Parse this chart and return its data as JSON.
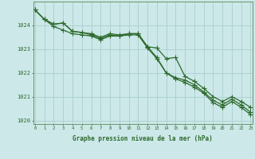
{
  "x": [
    0,
    1,
    2,
    3,
    4,
    5,
    6,
    7,
    8,
    9,
    10,
    11,
    12,
    13,
    14,
    15,
    16,
    17,
    18,
    19,
    20,
    21,
    22,
    23
  ],
  "series1": [
    1024.65,
    1024.25,
    1023.95,
    1023.8,
    1023.65,
    1023.6,
    1023.55,
    1023.4,
    1023.55,
    1023.55,
    1023.6,
    1023.6,
    1023.05,
    1022.6,
    1022.0,
    1021.75,
    1021.6,
    1021.4,
    1021.15,
    1020.75,
    1020.55,
    1020.8,
    1020.55,
    1020.25
  ],
  "series2": [
    1024.65,
    1024.25,
    1024.05,
    1024.1,
    1023.75,
    1023.7,
    1023.6,
    1023.45,
    1023.6,
    1023.55,
    1023.65,
    1023.65,
    1023.1,
    1022.65,
    1022.0,
    1021.8,
    1021.7,
    1021.5,
    1021.2,
    1020.85,
    1020.65,
    1020.9,
    1020.65,
    1020.35
  ],
  "series3": [
    1024.65,
    1024.25,
    1024.05,
    1024.1,
    1023.75,
    1023.7,
    1023.65,
    1023.5,
    1023.65,
    1023.6,
    1023.65,
    1023.65,
    1023.1,
    1023.05,
    1022.6,
    1022.65,
    1021.85,
    1021.65,
    1021.35,
    1021.0,
    1020.8,
    1021.0,
    1020.8,
    1020.55
  ],
  "line_color": "#2d6a2d",
  "bg_color": "#cce8e8",
  "grid_color": "#aacece",
  "xlabel": "Graphe pression niveau de la mer (hPa)",
  "ylim": [
    1019.85,
    1025.0
  ],
  "xlim": [
    -0.2,
    23.2
  ],
  "yticks": [
    1020,
    1021,
    1022,
    1023,
    1024
  ],
  "xticks": [
    0,
    1,
    2,
    3,
    4,
    5,
    6,
    7,
    8,
    9,
    10,
    11,
    12,
    13,
    14,
    15,
    16,
    17,
    18,
    19,
    20,
    21,
    22,
    23
  ]
}
